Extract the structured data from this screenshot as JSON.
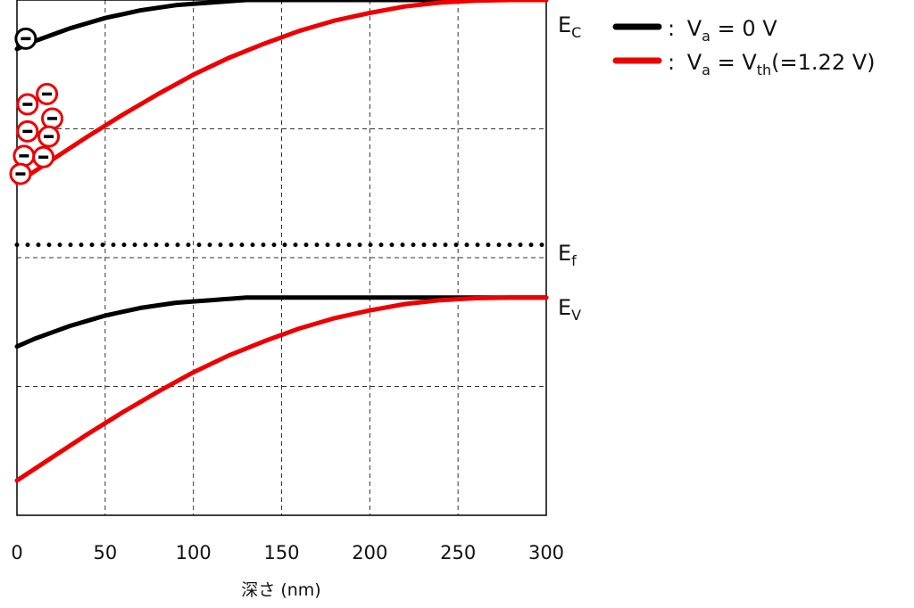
{
  "chart_data": {
    "type": "line",
    "xlabel": "深さ (nm)",
    "ylabel": "",
    "xlim": [
      0,
      300
    ],
    "ylim": [
      0,
      4
    ],
    "xticks": [
      "0",
      "50",
      "100",
      "150",
      "200",
      "250",
      "300"
    ],
    "grid": true,
    "legend_position": "top-right",
    "legend": [
      {
        "prefix": "V",
        "sub": "a",
        "text": " = 0 V",
        "text_sub": "",
        "text_tail": "",
        "color": "#000000"
      },
      {
        "prefix": "V",
        "sub": "a",
        "text": " = V",
        "text_sub": "th",
        "text_tail": "(=1.22 V)",
        "color": "#ee0000"
      }
    ],
    "band_labels": [
      {
        "main": "E",
        "sub": "C"
      },
      {
        "main": "E",
        "sub": "f"
      },
      {
        "main": "E",
        "sub": "V"
      }
    ],
    "series": [
      {
        "key": "ec0",
        "band": "Ec",
        "color": "#000000",
        "x": [
          0,
          10,
          20,
          30,
          40,
          50,
          60,
          70,
          80,
          90,
          100,
          110,
          120,
          130,
          140,
          150,
          160,
          170,
          180,
          190,
          200,
          210,
          220,
          230,
          240,
          250,
          260,
          270,
          280,
          290,
          300
        ],
        "y": [
          3.62,
          3.68,
          3.73,
          3.78,
          3.82,
          3.86,
          3.89,
          3.92,
          3.94,
          3.96,
          3.97,
          3.98,
          3.99,
          4.0,
          4.0,
          4.0,
          4.0,
          4.0,
          4.0,
          4.0,
          4.0,
          4.0,
          4.0,
          4.0,
          4.0,
          4.0,
          4.0,
          4.0,
          4.0,
          4.0,
          4.0
        ]
      },
      {
        "key": "ev0",
        "band": "Ev",
        "color": "#000000",
        "x": [
          0,
          10,
          20,
          30,
          40,
          50,
          60,
          70,
          80,
          90,
          100,
          110,
          120,
          130,
          140,
          150,
          160,
          170,
          180,
          190,
          200,
          210,
          220,
          230,
          240,
          250,
          260,
          270,
          280,
          290,
          300
        ],
        "y": [
          1.31,
          1.37,
          1.42,
          1.47,
          1.51,
          1.55,
          1.58,
          1.61,
          1.63,
          1.65,
          1.66,
          1.67,
          1.68,
          1.69,
          1.69,
          1.69,
          1.69,
          1.69,
          1.69,
          1.69,
          1.69,
          1.69,
          1.69,
          1.69,
          1.69,
          1.69,
          1.69,
          1.69,
          1.69,
          1.69,
          1.69
        ]
      },
      {
        "key": "ecth",
        "band": "Ec",
        "color": "#ee0000",
        "x": [
          0,
          20,
          40,
          60,
          80,
          100,
          120,
          140,
          160,
          180,
          200,
          220,
          240,
          260,
          280,
          300
        ],
        "y": [
          2.58,
          2.76,
          2.94,
          3.11,
          3.27,
          3.42,
          3.55,
          3.66,
          3.76,
          3.84,
          3.9,
          3.95,
          3.98,
          3.995,
          4.0,
          4.0
        ]
      },
      {
        "key": "evth",
        "band": "Ev",
        "color": "#ee0000",
        "x": [
          0,
          20,
          40,
          60,
          80,
          100,
          120,
          140,
          160,
          180,
          200,
          220,
          240,
          260,
          280,
          300
        ],
        "y": [
          0.27,
          0.45,
          0.63,
          0.8,
          0.96,
          1.11,
          1.24,
          1.35,
          1.45,
          1.53,
          1.59,
          1.64,
          1.67,
          1.685,
          1.69,
          1.69
        ]
      },
      {
        "key": "ef",
        "band": "Ef",
        "color": "#000000",
        "style": "dotted",
        "x": [
          0,
          300
        ],
        "y": [
          2.1,
          2.1
        ]
      }
    ],
    "electrons": [
      {
        "color": "#000000",
        "x": 5,
        "y": 3.7
      },
      {
        "color": "#ee0000",
        "x": 17,
        "y": 3.27
      },
      {
        "color": "#ee0000",
        "x": 6,
        "y": 3.19
      },
      {
        "color": "#ee0000",
        "x": 20,
        "y": 3.08
      },
      {
        "color": "#ee0000",
        "x": 6,
        "y": 2.98
      },
      {
        "color": "#ee0000",
        "x": 18,
        "y": 2.94
      },
      {
        "color": "#ee0000",
        "x": 4,
        "y": 2.79
      },
      {
        "color": "#ee0000",
        "x": 15,
        "y": 2.78
      },
      {
        "color": "#ee0000",
        "x": 2,
        "y": 2.65
      }
    ]
  }
}
